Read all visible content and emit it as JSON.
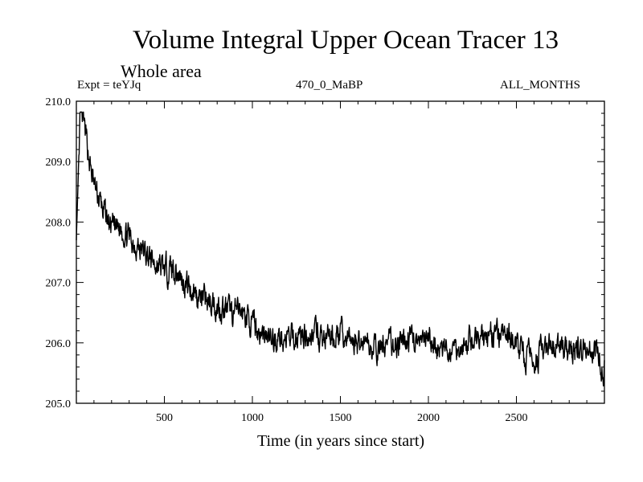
{
  "chart_data": {
    "type": "line",
    "title": "Volume Integral Upper Ocean Tracer 13",
    "subtitle": "Whole area",
    "experiment_label": "Expt = teYJq",
    "experiment_name": "470_0_MaBP",
    "period_label": "ALL_MONTHS",
    "xlabel": "Time (in years since start)",
    "ylabel": "",
    "xlim": [
      0,
      3000
    ],
    "ylim": [
      205.0,
      210.0
    ],
    "x_ticks": [
      500,
      1000,
      1500,
      2000,
      2500
    ],
    "x_tick_labels": [
      "500",
      "1000",
      "1500",
      "2000",
      "2500"
    ],
    "y_ticks": [
      205.0,
      206.0,
      207.0,
      208.0,
      209.0,
      210.0
    ],
    "y_tick_labels": [
      "205.0",
      "206.0",
      "207.0",
      "208.0",
      "209.0",
      "210.0"
    ],
    "grid": false,
    "series": [
      {
        "name": "Volume integral of upper ocean tracer 13",
        "x": [
          0,
          20,
          40,
          60,
          80,
          100,
          150,
          200,
          250,
          300,
          350,
          400,
          450,
          500,
          550,
          600,
          650,
          700,
          750,
          800,
          850,
          900,
          950,
          1000,
          1050,
          1100,
          1150,
          1200,
          1250,
          1300,
          1350,
          1400,
          1450,
          1500,
          1550,
          1600,
          1650,
          1700,
          1750,
          1800,
          1850,
          1900,
          1950,
          2000,
          2050,
          2100,
          2150,
          2200,
          2250,
          2300,
          2350,
          2400,
          2450,
          2500,
          2550,
          2600,
          2650,
          2700,
          2750,
          2800,
          2850,
          2900,
          2950,
          2990
        ],
        "y": [
          207.7,
          209.7,
          209.6,
          209.3,
          208.9,
          208.6,
          208.2,
          207.9,
          207.9,
          207.75,
          207.6,
          207.45,
          207.3,
          207.2,
          207.25,
          207.05,
          206.9,
          206.75,
          206.7,
          206.6,
          206.55,
          206.5,
          206.5,
          206.3,
          206.15,
          206.05,
          206.1,
          206.05,
          206.1,
          206.15,
          206.15,
          206.05,
          206.1,
          206.15,
          206.05,
          206.0,
          206.05,
          205.85,
          205.95,
          206.0,
          205.95,
          206.1,
          205.95,
          206.05,
          205.9,
          205.85,
          205.9,
          205.95,
          206.05,
          206.1,
          206.15,
          206.1,
          206.1,
          206.0,
          205.75,
          205.75,
          205.85,
          205.9,
          205.95,
          205.85,
          205.9,
          205.95,
          205.85,
          205.55
        ]
      }
    ]
  }
}
